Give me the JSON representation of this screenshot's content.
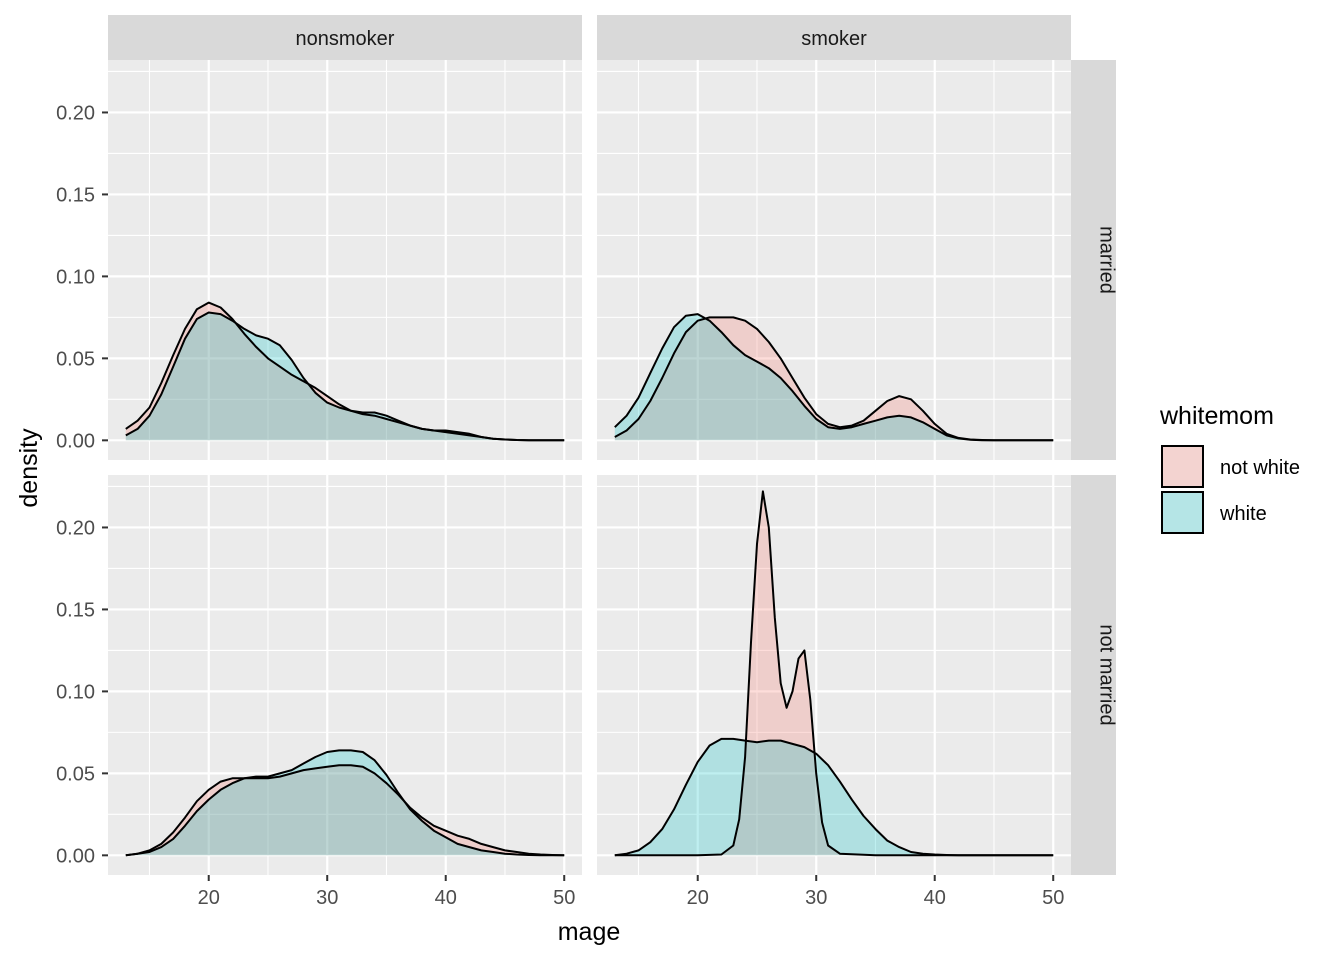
{
  "chart_data": {
    "type": "area",
    "chart_kind": "faceted density plot",
    "xlabel": "mage",
    "ylabel": "density",
    "xlim": [
      11.5,
      51.5
    ],
    "ylim": [
      -0.012,
      0.232
    ],
    "x_ticks": [
      20,
      30,
      40,
      50
    ],
    "y_ticks": [
      0.0,
      0.05,
      0.1,
      0.15,
      0.2
    ],
    "y_tick_labels": [
      "0.00",
      "0.05",
      "0.10",
      "0.15",
      "0.20"
    ],
    "grid": true,
    "column_facets": [
      "nonsmoker",
      "smoker"
    ],
    "row_facets": [
      "married",
      "not married"
    ],
    "legend": {
      "title": "whitemom",
      "placement": "right",
      "entries": [
        {
          "label": "not white",
          "color": "#F8766D"
        },
        {
          "label": "white",
          "color": "#00BFC4"
        }
      ]
    },
    "colors": {
      "panel_bg": "#EBEBEB",
      "grid": "#FFFFFF",
      "strip_bg": "#D9D9D9",
      "not_white": "#F8766D",
      "white": "#00BFC4",
      "outline": "#000000"
    },
    "fill_alpha": 0.25,
    "panels": [
      {
        "col": "nonsmoker",
        "row": "married",
        "series": [
          {
            "name": "not white",
            "x": [
              13,
              14,
              15,
              16,
              17,
              18,
              19,
              20,
              21,
              22,
              23,
              24,
              25,
              26,
              27,
              28,
              29,
              30,
              31,
              32,
              33,
              34,
              35,
              36,
              37,
              38,
              39,
              40,
              41,
              42,
              43,
              44,
              45,
              46,
              47,
              48,
              49,
              50
            ],
            "y": [
              0.007,
              0.012,
              0.02,
              0.035,
              0.052,
              0.068,
              0.08,
              0.084,
              0.081,
              0.074,
              0.065,
              0.057,
              0.05,
              0.045,
              0.04,
              0.036,
              0.032,
              0.027,
              0.022,
              0.018,
              0.016,
              0.015,
              0.013,
              0.011,
              0.009,
              0.007,
              0.006,
              0.006,
              0.005,
              0.004,
              0.002,
              0.001,
              0.0005,
              0.0002,
              0.0001,
              0.0,
              0.0,
              0.0
            ]
          },
          {
            "name": "white",
            "x": [
              13,
              14,
              15,
              16,
              17,
              18,
              19,
              20,
              21,
              22,
              23,
              24,
              25,
              26,
              27,
              28,
              29,
              30,
              31,
              32,
              33,
              34,
              35,
              36,
              37,
              38,
              39,
              40,
              41,
              42,
              43,
              44,
              45,
              46,
              47,
              48,
              49,
              50
            ],
            "y": [
              0.003,
              0.007,
              0.015,
              0.028,
              0.045,
              0.062,
              0.074,
              0.078,
              0.077,
              0.073,
              0.068,
              0.064,
              0.062,
              0.058,
              0.049,
              0.038,
              0.029,
              0.023,
              0.02,
              0.018,
              0.017,
              0.017,
              0.015,
              0.012,
              0.009,
              0.007,
              0.006,
              0.005,
              0.004,
              0.003,
              0.002,
              0.001,
              0.0005,
              0.0002,
              0.0001,
              0.0,
              0.0,
              0.0
            ]
          }
        ]
      },
      {
        "col": "smoker",
        "row": "married",
        "series": [
          {
            "name": "not white",
            "x": [
              13,
              14,
              15,
              16,
              17,
              18,
              19,
              20,
              21,
              22,
              23,
              24,
              25,
              26,
              27,
              28,
              29,
              30,
              31,
              32,
              33,
              34,
              35,
              36,
              37,
              38,
              39,
              40,
              41,
              42,
              43,
              44,
              45,
              46,
              47,
              48,
              49,
              50
            ],
            "y": [
              0.002,
              0.006,
              0.013,
              0.024,
              0.038,
              0.053,
              0.066,
              0.073,
              0.075,
              0.075,
              0.075,
              0.073,
              0.068,
              0.06,
              0.05,
              0.038,
              0.026,
              0.016,
              0.01,
              0.008,
              0.009,
              0.012,
              0.018,
              0.024,
              0.027,
              0.025,
              0.018,
              0.01,
              0.004,
              0.0015,
              0.0005,
              0.0002,
              0.0,
              0.0,
              0.0,
              0.0,
              0.0,
              0.0
            ]
          },
          {
            "name": "white",
            "x": [
              13,
              14,
              15,
              16,
              17,
              18,
              19,
              20,
              21,
              22,
              23,
              24,
              25,
              26,
              27,
              28,
              29,
              30,
              31,
              32,
              33,
              34,
              35,
              36,
              37,
              38,
              39,
              40,
              41,
              42,
              43,
              44,
              45,
              46,
              47,
              48,
              49,
              50
            ],
            "y": [
              0.008,
              0.015,
              0.026,
              0.041,
              0.056,
              0.069,
              0.076,
              0.077,
              0.073,
              0.066,
              0.058,
              0.052,
              0.048,
              0.044,
              0.038,
              0.03,
              0.021,
              0.013,
              0.008,
              0.007,
              0.008,
              0.01,
              0.012,
              0.014,
              0.015,
              0.014,
              0.011,
              0.007,
              0.003,
              0.0012,
              0.0004,
              0.0001,
              0.0,
              0.0,
              0.0,
              0.0,
              0.0,
              0.0
            ]
          }
        ]
      },
      {
        "col": "nonsmoker",
        "row": "not married",
        "series": [
          {
            "name": "not white",
            "x": [
              13,
              14,
              15,
              16,
              17,
              18,
              19,
              20,
              21,
              22,
              23,
              24,
              25,
              26,
              27,
              28,
              29,
              30,
              31,
              32,
              33,
              34,
              35,
              36,
              37,
              38,
              39,
              40,
              41,
              42,
              43,
              44,
              45,
              46,
              47,
              48,
              49,
              50
            ],
            "y": [
              0.0,
              0.001,
              0.003,
              0.007,
              0.014,
              0.023,
              0.033,
              0.04,
              0.045,
              0.047,
              0.047,
              0.047,
              0.047,
              0.048,
              0.05,
              0.052,
              0.053,
              0.054,
              0.055,
              0.055,
              0.054,
              0.05,
              0.044,
              0.037,
              0.029,
              0.023,
              0.018,
              0.015,
              0.012,
              0.01,
              0.007,
              0.005,
              0.003,
              0.002,
              0.001,
              0.0005,
              0.0002,
              0.0
            ]
          },
          {
            "name": "white",
            "x": [
              13,
              14,
              15,
              16,
              17,
              18,
              19,
              20,
              21,
              22,
              23,
              24,
              25,
              26,
              27,
              28,
              29,
              30,
              31,
              32,
              33,
              34,
              35,
              36,
              37,
              38,
              39,
              40,
              41,
              42,
              43,
              44,
              45,
              46,
              47,
              48,
              49,
              50
            ],
            "y": [
              0.0,
              0.001,
              0.002,
              0.005,
              0.01,
              0.018,
              0.027,
              0.034,
              0.04,
              0.044,
              0.047,
              0.048,
              0.048,
              0.05,
              0.052,
              0.056,
              0.06,
              0.063,
              0.064,
              0.064,
              0.063,
              0.058,
              0.049,
              0.038,
              0.028,
              0.021,
              0.015,
              0.011,
              0.007,
              0.005,
              0.003,
              0.002,
              0.001,
              0.0005,
              0.0002,
              0.0001,
              0.0,
              0.0
            ]
          }
        ]
      },
      {
        "col": "smoker",
        "row": "not married",
        "series": [
          {
            "name": "not white",
            "x": [
              13,
              20,
              22,
              23,
              23.5,
              24,
              24.5,
              25,
              25.5,
              26,
              26.5,
              27,
              27.5,
              28,
              28.5,
              29,
              29.5,
              30,
              30.5,
              31,
              32,
              35,
              50
            ],
            "y": [
              0.0,
              0.0,
              0.0005,
              0.006,
              0.022,
              0.06,
              0.13,
              0.19,
              0.222,
              0.2,
              0.145,
              0.105,
              0.09,
              0.1,
              0.12,
              0.125,
              0.095,
              0.05,
              0.02,
              0.006,
              0.001,
              0.0,
              0.0
            ]
          },
          {
            "name": "white",
            "x": [
              13,
              14,
              15,
              16,
              17,
              18,
              19,
              20,
              21,
              22,
              23,
              24,
              25,
              26,
              27,
              28,
              29,
              30,
              31,
              32,
              33,
              34,
              35,
              36,
              37,
              38,
              39,
              40,
              41,
              42,
              43,
              44,
              45,
              46,
              47,
              48,
              49,
              50
            ],
            "y": [
              0.0,
              0.001,
              0.003,
              0.008,
              0.016,
              0.028,
              0.043,
              0.057,
              0.067,
              0.071,
              0.071,
              0.07,
              0.069,
              0.07,
              0.07,
              0.068,
              0.066,
              0.062,
              0.055,
              0.045,
              0.034,
              0.024,
              0.016,
              0.009,
              0.005,
              0.002,
              0.001,
              0.0005,
              0.0002,
              0.0,
              0.0,
              0.0,
              0.0,
              0.0,
              0.0,
              0.0,
              0.0,
              0.0
            ]
          }
        ]
      }
    ]
  }
}
